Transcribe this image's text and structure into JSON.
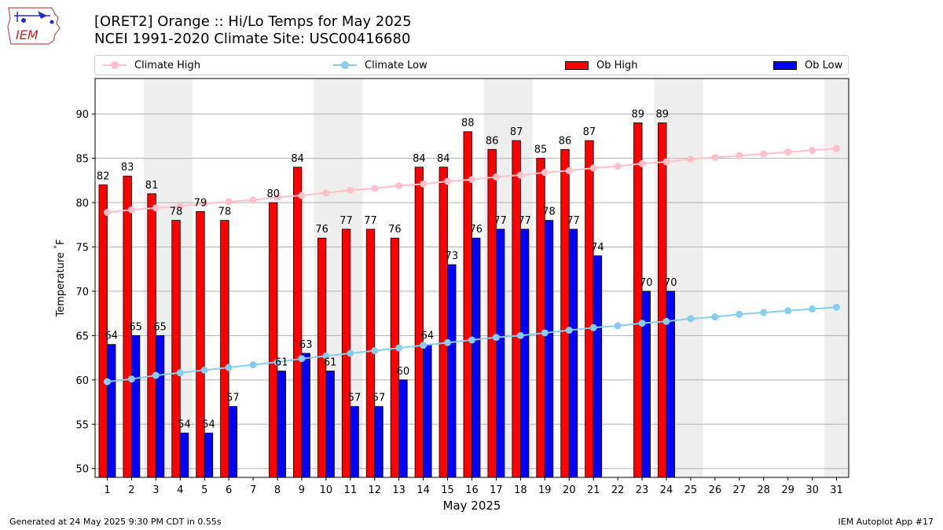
{
  "header": {
    "logo_text": "IEM",
    "title_line1": "[ORET2] Orange :: Hi/Lo Temps for May 2025",
    "title_line2": "NCEI 1991-2020 Climate Site: USC00416680"
  },
  "legend": {
    "items": [
      {
        "label": "Climate High",
        "kind": "line",
        "color": "#ffc0cb"
      },
      {
        "label": "Climate Low",
        "kind": "line",
        "color": "#87ceeb"
      },
      {
        "label": "Ob High",
        "kind": "bar",
        "color": "#ff0000"
      },
      {
        "label": "Ob Low",
        "kind": "bar",
        "color": "#0000ff"
      }
    ]
  },
  "footer": {
    "left": "Generated at 24 May 2025 9:30 PM CDT in 0.55s",
    "right": "IEM Autoplot App #17"
  },
  "chart_data": {
    "type": "bar",
    "xlabel": "May 2025",
    "ylabel": "Temperature $^\\circ$F",
    "ylim": [
      49,
      94
    ],
    "xlim": [
      0.5,
      31.5
    ],
    "yticks": [
      50,
      55,
      60,
      65,
      70,
      75,
      80,
      85,
      90
    ],
    "grid": true,
    "legend_position": "top",
    "weekend_days": [
      3,
      4,
      10,
      11,
      17,
      18,
      24,
      25,
      31
    ],
    "categories": [
      "1",
      "2",
      "3",
      "4",
      "5",
      "6",
      "7",
      "8",
      "9",
      "10",
      "11",
      "12",
      "13",
      "14",
      "15",
      "16",
      "17",
      "18",
      "19",
      "20",
      "21",
      "22",
      "23",
      "24",
      "25",
      "26",
      "27",
      "28",
      "29",
      "30",
      "31"
    ],
    "series": [
      {
        "name": "Ob High",
        "type": "bar",
        "color": "#ff0000",
        "values": [
          82,
          83,
          81,
          78,
          79,
          78,
          null,
          80,
          84,
          76,
          77,
          77,
          76,
          84,
          84,
          88,
          86,
          87,
          85,
          86,
          87,
          null,
          89,
          89,
          null,
          null,
          null,
          null,
          null,
          null,
          null
        ]
      },
      {
        "name": "Ob Low",
        "type": "bar",
        "color": "#0000ff",
        "values": [
          64,
          65,
          65,
          54,
          54,
          57,
          null,
          61,
          63,
          61,
          57,
          57,
          60,
          64,
          73,
          76,
          77,
          77,
          78,
          77,
          74,
          null,
          70,
          70,
          null,
          null,
          null,
          null,
          null,
          null,
          null
        ]
      },
      {
        "name": "Climate High",
        "type": "line",
        "color": "#ffc0cb",
        "values": [
          78.9,
          79.2,
          79.4,
          79.6,
          79.9,
          80.1,
          80.3,
          80.6,
          80.8,
          81.1,
          81.4,
          81.6,
          81.9,
          82.1,
          82.4,
          82.6,
          82.9,
          83.1,
          83.4,
          83.6,
          83.9,
          84.1,
          84.4,
          84.6,
          84.9,
          85.1,
          85.3,
          85.5,
          85.7,
          85.9,
          86.1
        ]
      },
      {
        "name": "Climate Low",
        "type": "line",
        "color": "#87ceeb",
        "values": [
          59.8,
          60.1,
          60.5,
          60.8,
          61.1,
          61.4,
          61.7,
          62.0,
          62.4,
          62.7,
          63.0,
          63.3,
          63.6,
          63.9,
          64.2,
          64.5,
          64.8,
          65.0,
          65.3,
          65.6,
          65.9,
          66.1,
          66.4,
          66.6,
          66.9,
          67.1,
          67.4,
          67.6,
          67.8,
          68.0,
          68.2
        ]
      }
    ]
  }
}
